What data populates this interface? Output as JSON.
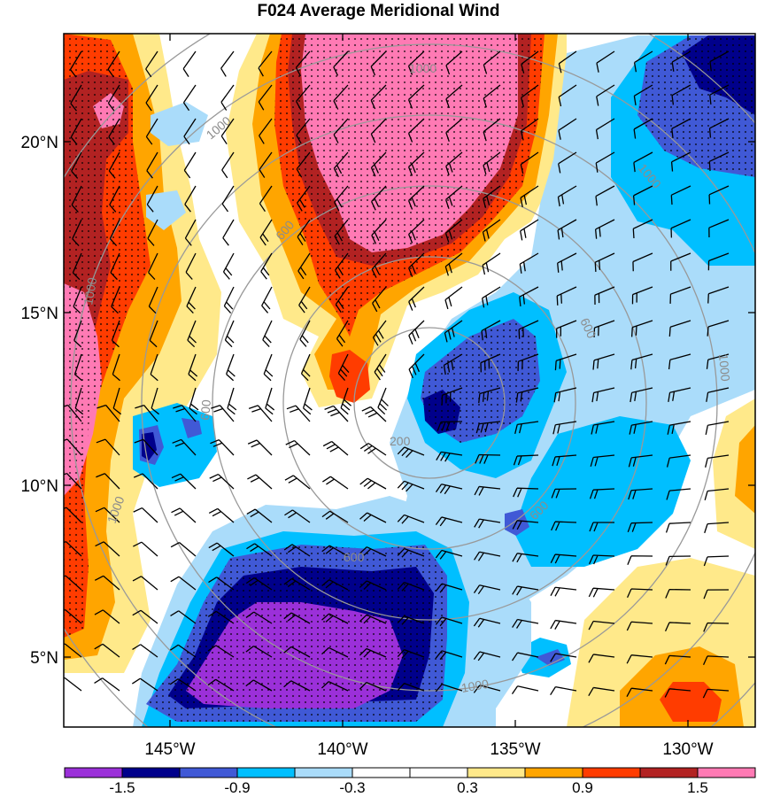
{
  "title": "F024 Average Meridional Wind",
  "axes": {
    "lat_labels": [
      "20°N",
      "15°N",
      "10°N",
      "5°N"
    ],
    "lon_labels": [
      "145°W",
      "140°W",
      "135°W",
      "130°W"
    ]
  },
  "radius_labels": [
    "200",
    "600",
    "600",
    "600",
    "600",
    "600",
    "1000",
    "1000",
    "1000",
    "1000",
    "1000",
    "1000",
    "1000"
  ],
  "colorbar": {
    "tick_labels": [
      "-1.5",
      "-0.9",
      "-0.3",
      "0.3",
      "0.9",
      "1.5"
    ],
    "levels": [
      -1.5,
      -1.2,
      -0.9,
      -0.6,
      -0.3,
      0,
      0.3,
      0.6,
      0.9,
      1.2,
      1.5
    ],
    "colors": [
      "#9b30d9",
      "#00008b",
      "#4059d6",
      "#00bfff",
      "#aadcfa",
      "#ffffff",
      "#ffffff",
      "#ffe98a",
      "#ffa500",
      "#ff3c00",
      "#b22222",
      "#ff7ab4"
    ]
  }
}
